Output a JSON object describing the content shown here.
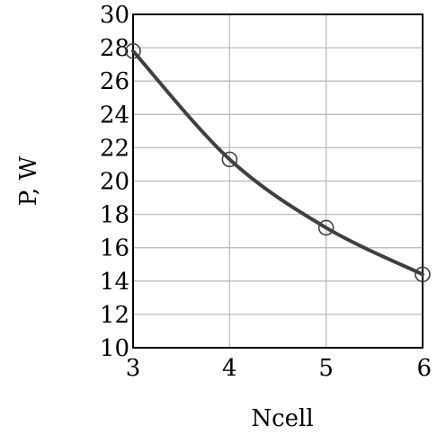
{
  "chart_data": {
    "type": "line",
    "title": "",
    "xlabel": "Ncell",
    "ylabel": "P, W",
    "xlim": [
      3,
      6
    ],
    "ylim": [
      10,
      30
    ],
    "x_ticks": [
      "3",
      "4",
      "5",
      "6"
    ],
    "y_ticks": [
      "10",
      "12",
      "14",
      "16",
      "18",
      "20",
      "22",
      "24",
      "26",
      "28",
      "30"
    ],
    "grid": true,
    "legend": "none",
    "series": [
      {
        "x": [
          3,
          4,
          5,
          6
        ],
        "y": [
          27.8,
          21.3,
          17.2,
          14.4
        ],
        "marker": "open-circle",
        "color": "#404040"
      }
    ],
    "colors": {
      "line": "#404040",
      "grid": "#bdbdbd",
      "frame": "#000000"
    }
  }
}
